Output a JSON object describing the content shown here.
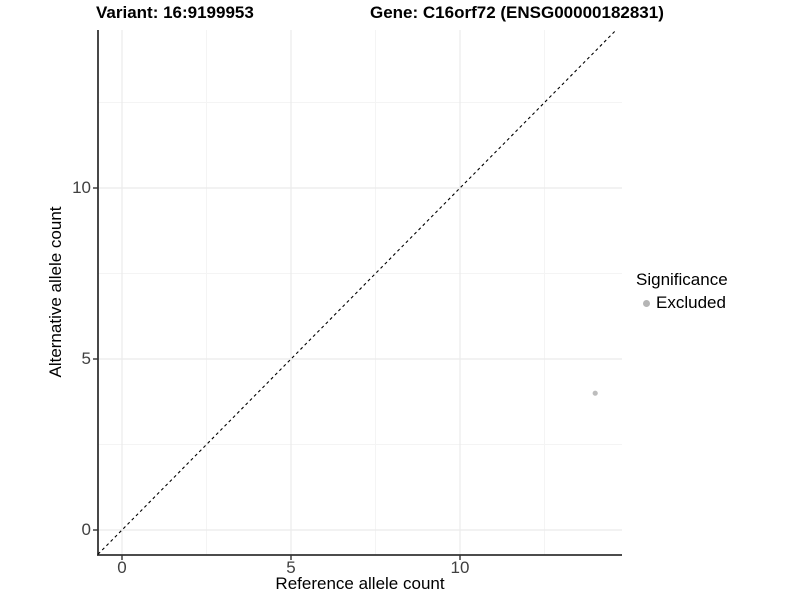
{
  "titles": {
    "variant": "Variant: 16:9199953",
    "gene": "Gene: C16orf72 (ENSG00000182831)"
  },
  "axes": {
    "x": {
      "label": "Reference allele count",
      "tick_labels": [
        "0",
        "5",
        "10"
      ]
    },
    "y": {
      "label": "Alternative allele count",
      "tick_labels": [
        "0",
        "5",
        "10"
      ]
    }
  },
  "legend": {
    "title": "Significance",
    "items": [
      {
        "label": "Excluded",
        "color": "#b5b5b5"
      }
    ]
  },
  "colors": {
    "background": "#ffffff",
    "grid_major": "#ebebeb",
    "grid_minor": "#f4f4f4",
    "axis_line": "#333333",
    "tick_mark": "#333333",
    "reference_line": "#000000",
    "point": "#bdbdbd"
  },
  "chart_data": {
    "type": "scatter",
    "title": "Variant: 16:9199953   |   Gene: C16orf72 (ENSG00000182831)",
    "xlabel": "Reference allele count",
    "ylabel": "Alternative allele count",
    "xlim": [
      -0.71,
      14.79
    ],
    "ylim": [
      -0.73,
      14.62
    ],
    "x_ticks": [
      0,
      5,
      10
    ],
    "y_ticks": [
      0,
      5,
      10
    ],
    "x_minor_ticks": [
      2.5,
      7.5,
      12.5
    ],
    "y_minor_ticks": [
      2.5,
      7.5,
      12.5
    ],
    "grid": "major+minor",
    "legend_position": "right",
    "reference_line": {
      "kind": "identity y=x",
      "style": "dashed",
      "color": "#000000"
    },
    "series": [
      {
        "name": "Excluded",
        "color": "#bdbdbd",
        "points": [
          {
            "x": 14,
            "y": 4
          }
        ]
      }
    ]
  }
}
